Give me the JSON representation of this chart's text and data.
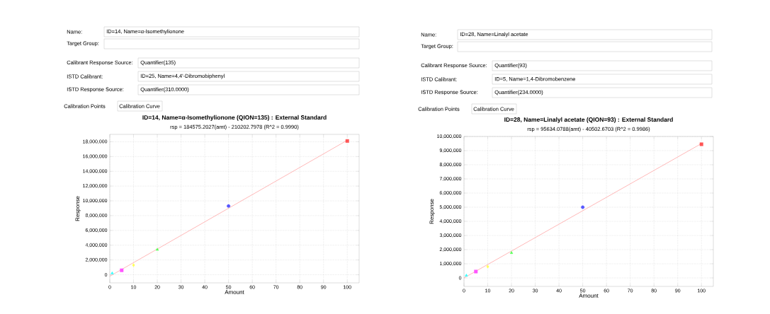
{
  "chart_data": [
    {
      "type": "scatter",
      "title": "ID=14, Name=α-Isomethylionone (QION=135) : External Standard",
      "subtitle": "rsp = 184575.2027(amt) - 210202.7978 (R^2 = 0.9990)",
      "xlabel": "Amount",
      "ylabel": "Response",
      "annotations": [
        "Name:",
        "ID=14, Name=α-Isomethylionone",
        "Target Group:",
        "Calibrant Response Source:",
        "Quantifier(135)",
        "ISTD Calibrant:",
        "ID=25, Name=4,4'-Dibromobiphenyl",
        "ISTD Response Source:",
        "Quantifier(310.0000)",
        "Calibration Points",
        "Calibration Curve"
      ],
      "series": [
        {
          "type": "line",
          "x": [
            0,
            100
          ],
          "values": [
            -200000,
            18200000
          ],
          "color": "#ff9999",
          "marker": "none"
        },
        {
          "type": "scatter",
          "x": [
            1
          ],
          "values": [
            200000
          ],
          "color": "#33ffff",
          "marker": "triangle"
        },
        {
          "type": "scatter",
          "x": [
            5
          ],
          "values": [
            600000
          ],
          "color": "#ff55ff",
          "marker": "square"
        },
        {
          "type": "scatter",
          "x": [
            10
          ],
          "values": [
            1300000
          ],
          "color": "#ffff55",
          "marker": "diamond"
        },
        {
          "type": "scatter",
          "x": [
            20
          ],
          "values": [
            3400000
          ],
          "color": "#55ff55",
          "marker": "triangle"
        },
        {
          "type": "scatter",
          "x": [
            50
          ],
          "values": [
            9300000
          ],
          "color": "#5555ff",
          "marker": "circle"
        },
        {
          "type": "scatter",
          "x": [
            100
          ],
          "values": [
            18100000
          ],
          "color": "#ff5555",
          "marker": "square"
        }
      ],
      "xlim": [
        0,
        105
      ],
      "ylim": [
        -1100000,
        19000000
      ],
      "xticks": [
        0,
        10,
        20,
        30,
        40,
        50,
        60,
        70,
        80,
        90,
        100
      ],
      "yticks": [
        0,
        {
          "value": 2000000,
          "label": "2,000,000"
        },
        {
          "value": 4000000,
          "label": "4,000,000"
        },
        {
          "value": 6000000,
          "label": "6,000,000"
        },
        {
          "value": 8000000,
          "label": "8,000,000"
        },
        {
          "value": 10000000,
          "label": "10,000,000"
        },
        {
          "value": 12000000,
          "label": "12,000,000"
        },
        {
          "value": 14000000,
          "label": "14,000,000"
        },
        {
          "value": 16000000,
          "label": "16,000,000"
        },
        {
          "value": 18000000,
          "label": "18,000,000"
        }
      ],
      "grid": true
    },
    {
      "type": "scatter",
      "title": "ID=28, Name=Linalyl acetate (QION=93) : External Standard",
      "subtitle": "rsp = 95634.0788(amt) - 40502.6703 (R^2 = 0.9986)",
      "xlabel": "Amount",
      "ylabel": "Response",
      "annotations": [
        "Name:",
        "ID=28, Name=Linalyl acetate",
        "Target Group:",
        "Calibrant Response Source:",
        "Quantifier(93)",
        "ISTD Calibrant:",
        "ID=5, Name=1,4-Dibromobenzene",
        "ISTD Response Source:",
        "Quantifier(234.0000)",
        "Calibration Points",
        "Calibration Curve"
      ],
      "series": [
        {
          "type": "line",
          "x": [
            0,
            100
          ],
          "values": [
            0,
            9500000
          ],
          "color": "#ff9999",
          "marker": "none"
        },
        {
          "type": "scatter",
          "x": [
            1
          ],
          "values": [
            170000
          ],
          "color": "#33ffff",
          "marker": "triangle"
        },
        {
          "type": "scatter",
          "x": [
            5
          ],
          "values": [
            450000
          ],
          "color": "#ff55ff",
          "marker": "square"
        },
        {
          "type": "scatter",
          "x": [
            10
          ],
          "values": [
            800000
          ],
          "color": "#ffff55",
          "marker": "diamond"
        },
        {
          "type": "scatter",
          "x": [
            20
          ],
          "values": [
            1770000
          ],
          "color": "#55ff55",
          "marker": "triangle"
        },
        {
          "type": "scatter",
          "x": [
            50
          ],
          "values": [
            5000000
          ],
          "color": "#5555ff",
          "marker": "circle"
        },
        {
          "type": "scatter",
          "x": [
            100
          ],
          "values": [
            9450000
          ],
          "color": "#ff5555",
          "marker": "square"
        }
      ],
      "xlim": [
        0,
        105
      ],
      "ylim": [
        -600000,
        10000000
      ],
      "xticks": [
        0,
        10,
        20,
        30,
        40,
        50,
        60,
        70,
        80,
        90,
        100
      ],
      "yticks": [
        0,
        {
          "value": 1000000,
          "label": "1,000,000"
        },
        {
          "value": 2000000,
          "label": "2,000,000"
        },
        {
          "value": 3000000,
          "label": "3,000,000"
        },
        {
          "value": 4000000,
          "label": "4,000,000"
        },
        {
          "value": 5000000,
          "label": "5,000,000"
        },
        {
          "value": 6000000,
          "label": "6,000,000"
        },
        {
          "value": 7000000,
          "label": "7,000,000"
        },
        {
          "value": 8000000,
          "label": "8,000,000"
        },
        {
          "value": 9000000,
          "label": "9,000,000"
        },
        {
          "value": 10000000,
          "label": "10,000,000"
        }
      ],
      "grid": true
    }
  ]
}
